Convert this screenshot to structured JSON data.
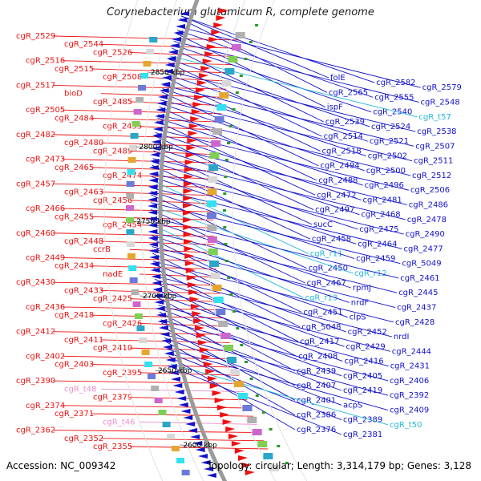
{
  "title": "Corynebacterium glutamicum R, complete genome",
  "footer": {
    "accession": "Accession: NC_009342",
    "summary": "Topology: circular; Length: 3,314,179 bp; Genes: 3,128"
  },
  "colors": {
    "forward": "#e11",
    "reverse": "#1111cc",
    "rna": "#22b8d8",
    "trna": "#ef8fc8",
    "backbone": "#9a9a9a"
  },
  "kbp_ticks": [
    "2850 kbp",
    "2800 kbp",
    "2750 kbp",
    "2700 kbp",
    "2650 kbp",
    "2600 kbp"
  ],
  "left_labels": [
    {
      "text": "cgR_2529",
      "kind": "gene"
    },
    {
      "text": "cgR_2544",
      "kind": "gene"
    },
    {
      "text": "cgR_2526",
      "kind": "gene"
    },
    {
      "text": "cgR_2516",
      "kind": "gene"
    },
    {
      "text": "cgR_2515",
      "kind": "gene"
    },
    {
      "text": "cgR_2508",
      "kind": "gene"
    },
    {
      "text": "cgR_2517",
      "kind": "gene"
    },
    {
      "text": "bioD",
      "kind": "gene"
    },
    {
      "text": "cgR_2485",
      "kind": "gene"
    },
    {
      "text": "cgR_2505",
      "kind": "gene"
    },
    {
      "text": "cgR_2484",
      "kind": "gene"
    },
    {
      "text": "cgR_2495",
      "kind": "gene"
    },
    {
      "text": "cgR_2482",
      "kind": "gene"
    },
    {
      "text": "cgR_2480",
      "kind": "gene"
    },
    {
      "text": "cgR_2489",
      "kind": "gene"
    },
    {
      "text": "cgR_2473",
      "kind": "gene"
    },
    {
      "text": "cgR_2465",
      "kind": "gene"
    },
    {
      "text": "cgR_2474",
      "kind": "gene"
    },
    {
      "text": "cgR_2457",
      "kind": "gene"
    },
    {
      "text": "cgR_2463",
      "kind": "gene"
    },
    {
      "text": "cgR_2456",
      "kind": "gene"
    },
    {
      "text": "cgR_2466",
      "kind": "gene"
    },
    {
      "text": "cgR_2455",
      "kind": "gene"
    },
    {
      "text": "cgR_2454",
      "kind": "gene"
    },
    {
      "text": "cgR_2460",
      "kind": "gene"
    },
    {
      "text": "cgR_2448",
      "kind": "gene"
    },
    {
      "text": "ccrB",
      "kind": "gene"
    },
    {
      "text": "cgR_2449",
      "kind": "gene"
    },
    {
      "text": "cgR_2434",
      "kind": "gene"
    },
    {
      "text": "nadE",
      "kind": "gene"
    },
    {
      "text": "cgR_2430",
      "kind": "gene"
    },
    {
      "text": "cgR_2433",
      "kind": "gene"
    },
    {
      "text": "cgR_2425",
      "kind": "gene"
    },
    {
      "text": "cgR_2436",
      "kind": "gene"
    },
    {
      "text": "cgR_2418",
      "kind": "gene"
    },
    {
      "text": "cgR_2426",
      "kind": "gene"
    },
    {
      "text": "cgR_2412",
      "kind": "gene"
    },
    {
      "text": "cgR_2411",
      "kind": "gene"
    },
    {
      "text": "cgR_2410",
      "kind": "gene"
    },
    {
      "text": "cgR_2402",
      "kind": "gene"
    },
    {
      "text": "cgR_2403",
      "kind": "gene"
    },
    {
      "text": "cgR_2395",
      "kind": "gene"
    },
    {
      "text": "cgR_2390",
      "kind": "gene"
    },
    {
      "text": "cgR_t48",
      "kind": "trna"
    },
    {
      "text": "cgR_2379",
      "kind": "gene"
    },
    {
      "text": "cgR_2374",
      "kind": "gene"
    },
    {
      "text": "cgR_2371",
      "kind": "gene"
    },
    {
      "text": "cgR_t46",
      "kind": "trna"
    },
    {
      "text": "cgR_2362",
      "kind": "gene"
    },
    {
      "text": "cgR_2352",
      "kind": "gene"
    },
    {
      "text": "cgR_2355",
      "kind": "gene"
    }
  ],
  "right_labels": [
    {
      "text": "folE",
      "kind": "gene"
    },
    {
      "text": "cgR_2582",
      "kind": "gene"
    },
    {
      "text": "cgR_2579",
      "kind": "gene"
    },
    {
      "text": "cgR_2565",
      "kind": "gene"
    },
    {
      "text": "cgR_2555",
      "kind": "gene"
    },
    {
      "text": "cgR_2548",
      "kind": "gene"
    },
    {
      "text": "ispF",
      "kind": "gene"
    },
    {
      "text": "cgR_2540",
      "kind": "gene"
    },
    {
      "text": "cgR_t57",
      "kind": "rna"
    },
    {
      "text": "cgR_2539",
      "kind": "gene"
    },
    {
      "text": "cgR_2524",
      "kind": "gene"
    },
    {
      "text": "cgR_2538",
      "kind": "gene"
    },
    {
      "text": "cgR_2514",
      "kind": "gene"
    },
    {
      "text": "cgR_2521",
      "kind": "gene"
    },
    {
      "text": "cgR_2507",
      "kind": "gene"
    },
    {
      "text": "cgR_2518",
      "kind": "gene"
    },
    {
      "text": "cgR_2502",
      "kind": "gene"
    },
    {
      "text": "cgR_2511",
      "kind": "gene"
    },
    {
      "text": "cgR_2494",
      "kind": "gene"
    },
    {
      "text": "cgR_2500",
      "kind": "gene"
    },
    {
      "text": "cgR_2512",
      "kind": "gene"
    },
    {
      "text": "cgR_2488",
      "kind": "gene"
    },
    {
      "text": "cgR_2496",
      "kind": "gene"
    },
    {
      "text": "cgR_2506",
      "kind": "gene"
    },
    {
      "text": "cgR_2472",
      "kind": "gene"
    },
    {
      "text": "cgR_2481",
      "kind": "gene"
    },
    {
      "text": "cgR_2486",
      "kind": "gene"
    },
    {
      "text": "cgR_2497",
      "kind": "gene"
    },
    {
      "text": "cgR_2468",
      "kind": "gene"
    },
    {
      "text": "cgR_2478",
      "kind": "gene"
    },
    {
      "text": "sucC",
      "kind": "gene"
    },
    {
      "text": "cgR_2475",
      "kind": "gene"
    },
    {
      "text": "cgR_2490",
      "kind": "gene"
    },
    {
      "text": "cgR_2458",
      "kind": "gene"
    },
    {
      "text": "cgR_2464",
      "kind": "gene"
    },
    {
      "text": "cgR_2477",
      "kind": "gene"
    },
    {
      "text": "cgR_r11",
      "kind": "rna"
    },
    {
      "text": "cgR_2459",
      "kind": "gene"
    },
    {
      "text": "cgR_5049",
      "kind": "gene"
    },
    {
      "text": "cgR_2450",
      "kind": "gene"
    },
    {
      "text": "cgR_r12",
      "kind": "rna"
    },
    {
      "text": "cgR_2461",
      "kind": "gene"
    },
    {
      "text": "cgR_2467",
      "kind": "gene"
    },
    {
      "text": "rpmJ",
      "kind": "gene"
    },
    {
      "text": "cgR_2445",
      "kind": "gene"
    },
    {
      "text": "cgR_r13",
      "kind": "rna"
    },
    {
      "text": "nrdF",
      "kind": "gene"
    },
    {
      "text": "cgR_2437",
      "kind": "gene"
    },
    {
      "text": "cgR_2451",
      "kind": "gene"
    },
    {
      "text": "clpS",
      "kind": "gene"
    },
    {
      "text": "cgR_2428",
      "kind": "gene"
    },
    {
      "text": "cgR_5048",
      "kind": "gene"
    },
    {
      "text": "cgR_2452",
      "kind": "gene"
    },
    {
      "text": "nrdI",
      "kind": "gene"
    },
    {
      "text": "cgR_2417",
      "kind": "gene"
    },
    {
      "text": "cgR_2429",
      "kind": "gene"
    },
    {
      "text": "cgR_2444",
      "kind": "gene"
    },
    {
      "text": "cgR_2408",
      "kind": "gene"
    },
    {
      "text": "cgR_2416",
      "kind": "gene"
    },
    {
      "text": "cgR_2431",
      "kind": "gene"
    },
    {
      "text": "cgR_2439",
      "kind": "gene"
    },
    {
      "text": "cgR_2405",
      "kind": "gene"
    },
    {
      "text": "cgR_2406",
      "kind": "gene"
    },
    {
      "text": "cgR_2407",
      "kind": "gene"
    },
    {
      "text": "cgR_2419",
      "kind": "gene"
    },
    {
      "text": "cgR_2392",
      "kind": "gene"
    },
    {
      "text": "cgR_2401",
      "kind": "gene"
    },
    {
      "text": "acpS",
      "kind": "gene"
    },
    {
      "text": "cgR_2409",
      "kind": "gene"
    },
    {
      "text": "cgR_2386",
      "kind": "gene"
    },
    {
      "text": "cgR_2389",
      "kind": "gene"
    },
    {
      "text": "cgR_t50",
      "kind": "rna"
    },
    {
      "text": "cgR_2376",
      "kind": "gene"
    },
    {
      "text": "cgR_2381",
      "kind": "gene"
    }
  ]
}
